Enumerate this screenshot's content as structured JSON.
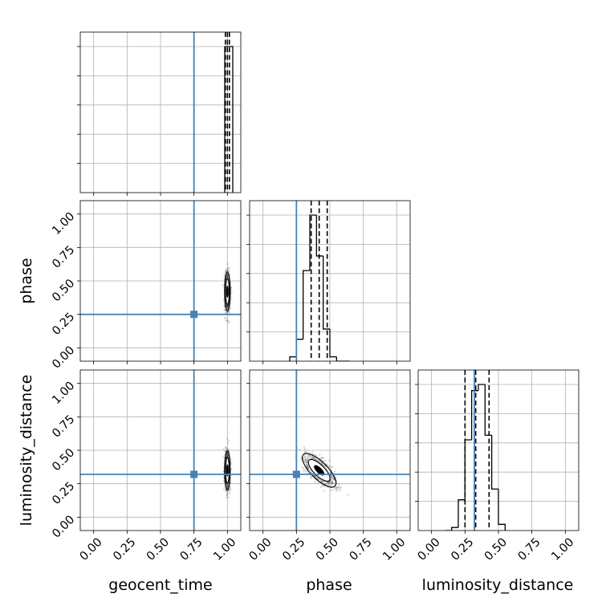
{
  "chart_data": {
    "type": "corner",
    "parameters": [
      "geocent_time",
      "phase",
      "luminosity_distance"
    ],
    "axis_range": [
      -0.1,
      1.1
    ],
    "ticks": [
      0.0,
      0.25,
      0.5,
      0.75,
      1.0
    ],
    "tick_labels": [
      "0.00",
      "0.25",
      "0.50",
      "0.75",
      "1.00"
    ],
    "grid": true,
    "truths": {
      "geocent_time": 0.75,
      "phase": 0.25,
      "luminosity_distance": 0.32
    },
    "truth_color": "#4682b4",
    "hist_color": "#000000",
    "histograms": {
      "geocent_time": {
        "edges": [
          0.98,
          1.04
        ],
        "counts": [
          1.0
        ],
        "quantiles": [
          0.985,
          1.0,
          1.015
        ]
      },
      "phase": {
        "edges": [
          0.2,
          0.25,
          0.3,
          0.35,
          0.4,
          0.45,
          0.5,
          0.55,
          0.6,
          0.65
        ],
        "counts": [
          0.03,
          0.15,
          0.62,
          1.0,
          0.72,
          0.22,
          0.03,
          0.0,
          0.0
        ],
        "quantiles": [
          0.36,
          0.42,
          0.48
        ]
      },
      "luminosity_distance": {
        "edges": [
          0.1,
          0.15,
          0.2,
          0.25,
          0.3,
          0.35,
          0.4,
          0.45,
          0.5,
          0.55
        ],
        "counts": [
          0.0,
          0.02,
          0.2,
          0.59,
          0.91,
          0.95,
          0.62,
          0.27,
          0.04
        ],
        "quantiles": [
          0.25,
          0.33,
          0.43
        ]
      }
    },
    "posterior_2d": {
      "geocent_time_vs_phase": {
        "x_center": 1.0,
        "y_center": 0.42,
        "x_spread": 0.01,
        "y_spread": 0.07
      },
      "geocent_time_vs_luminosity_distance": {
        "x_center": 1.0,
        "y_center": 0.35,
        "x_spread": 0.01,
        "y_spread": 0.07
      },
      "phase_vs_luminosity_distance": {
        "x_center": 0.42,
        "y_center": 0.35,
        "x_spread": 0.06,
        "y_spread": 0.06,
        "correlation": -0.75
      }
    }
  }
}
